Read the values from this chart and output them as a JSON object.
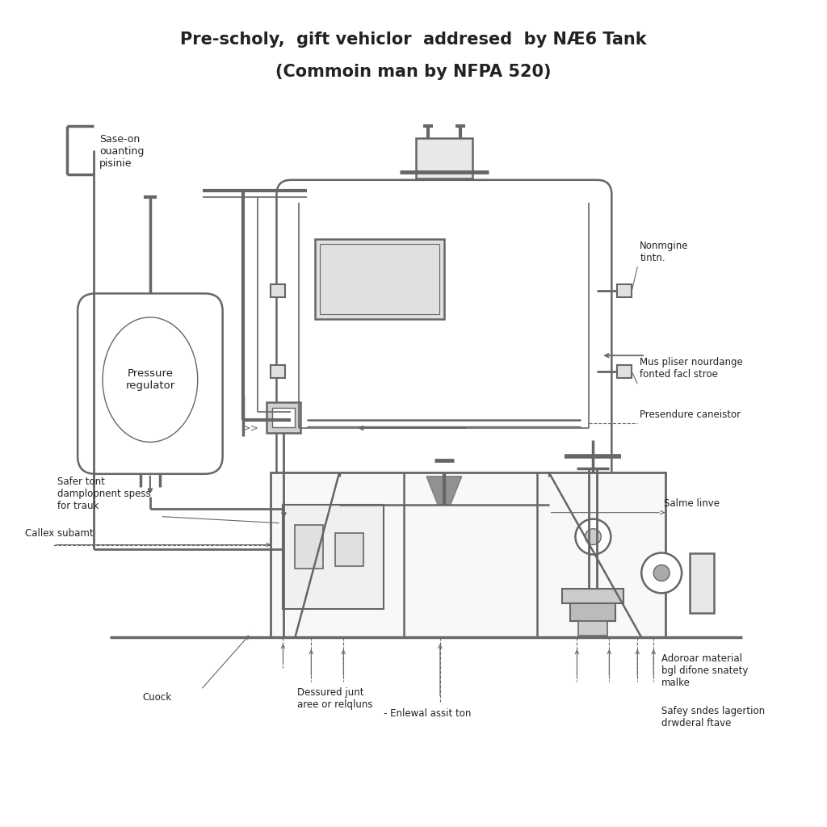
{
  "title_line1": "Pre-scholy,  gift vehiclor  addresed  by NÆ6 Tank",
  "title_line2": "(Commoin man by NFPA 520)",
  "bg_color": "#ffffff",
  "line_color": "#666666",
  "text_color": "#222222",
  "labels": {
    "top_left": "Sase-on\nouanting\npisinie",
    "pressure_regulator": "Pressure\nregulator",
    "safer_tont": "Safer tont\ndamplopnent spess\nfor trauk",
    "callex": "Callex subamt",
    "nonmgine": "Nonmgine\ntintn.",
    "mus_pliser": "Mus pliser nourdange\nfonted facl stroe",
    "presendure": "Presendure caneistor",
    "salme_linve": "Salme linve",
    "cuock": "Cuock",
    "dessured": "Dessured junt\naree or relqluns",
    "enlewal": "Enlewal assit ton",
    "adoroar": "Adoroar material\nbgl difone snatety\nmalke",
    "safey_sndes": "Safey sndes lagertion\ndrwderal ftave"
  }
}
